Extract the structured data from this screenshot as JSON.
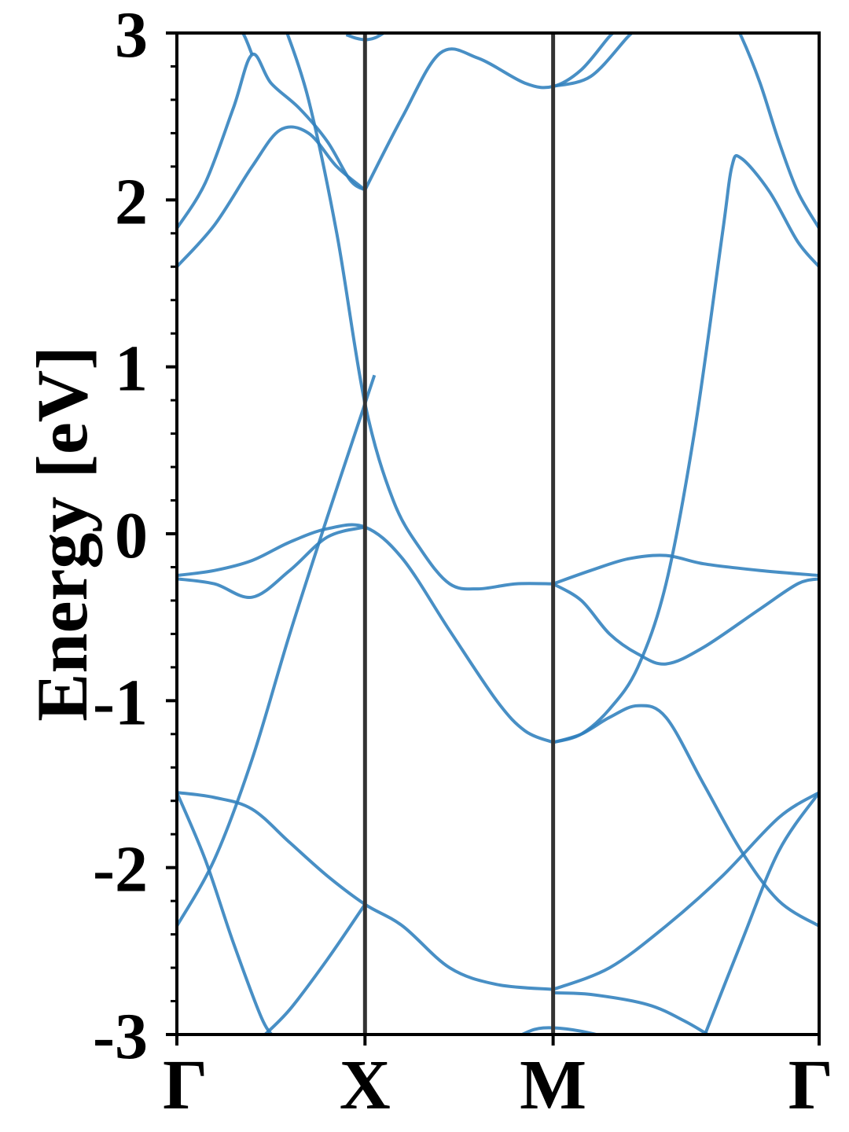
{
  "chart_data": {
    "type": "line",
    "title": "",
    "xlabel": "",
    "ylabel": "Energy [eV]",
    "ylim": [
      -3,
      3
    ],
    "y_ticks": [
      "-3",
      "-2",
      "-1",
      "0",
      "1",
      "2",
      "3"
    ],
    "y_minor_step": 0.2,
    "x_range": [
      0,
      3.414
    ],
    "high_symmetry_points": [
      {
        "label": "Γ",
        "x": 0
      },
      {
        "label": "X",
        "x": 1
      },
      {
        "label": "M",
        "x": 2
      },
      {
        "label": "Γ",
        "x": 3.414
      }
    ],
    "grid": false,
    "legend": "none",
    "colors": {
      "bands": "#2f80bd",
      "kpath_lines": "#333333",
      "axes": "#000000"
    },
    "series": [
      {
        "points": [
          [
            0,
            1.6
          ],
          [
            0.2,
            1.85
          ],
          [
            0.4,
            2.2
          ],
          [
            0.55,
            2.42
          ],
          [
            0.7,
            2.4
          ],
          [
            0.85,
            2.2
          ],
          [
            1.0,
            2.06
          ]
        ]
      },
      {
        "points": [
          [
            0,
            1.83
          ],
          [
            0.15,
            2.1
          ],
          [
            0.3,
            2.55
          ],
          [
            0.4,
            2.87
          ],
          [
            0.5,
            2.7
          ],
          [
            0.65,
            2.55
          ],
          [
            0.8,
            2.35
          ],
          [
            0.92,
            2.12
          ],
          [
            1.0,
            2.06
          ]
        ]
      },
      {
        "points": [
          [
            0.3,
            3.02
          ],
          [
            0.35,
            3.0
          ],
          [
            0.4,
            2.87
          ]
        ]
      },
      {
        "points": [
          [
            1.0,
            2.06
          ],
          [
            1.2,
            2.5
          ],
          [
            1.4,
            2.88
          ],
          [
            1.6,
            2.85
          ],
          [
            1.85,
            2.7
          ],
          [
            2.0,
            2.68
          ],
          [
            2.15,
            2.78
          ],
          [
            2.3,
            2.98
          ],
          [
            2.35,
            3.02
          ]
        ]
      },
      {
        "points": [
          [
            2.0,
            2.68
          ],
          [
            2.2,
            2.74
          ],
          [
            2.4,
            2.98
          ],
          [
            2.45,
            3.02
          ]
        ]
      },
      {
        "points": [
          [
            3.414,
            1.6
          ],
          [
            3.3,
            1.75
          ],
          [
            3.15,
            2.05
          ],
          [
            3.0,
            2.25
          ],
          [
            2.95,
            2.2
          ],
          [
            2.9,
            1.8
          ],
          [
            2.75,
            0.6
          ],
          [
            2.6,
            -0.3
          ],
          [
            2.45,
            -0.8
          ],
          [
            2.3,
            -1.05
          ],
          [
            2.15,
            -1.2
          ],
          [
            2.0,
            -1.25
          ]
        ]
      },
      {
        "points": [
          [
            3.414,
            1.83
          ],
          [
            3.3,
            2.05
          ],
          [
            3.2,
            2.35
          ],
          [
            3.1,
            2.7
          ],
          [
            3.0,
            2.98
          ],
          [
            2.97,
            3.02
          ]
        ]
      },
      {
        "points": [
          [
            0.58,
            3.02
          ],
          [
            0.7,
            2.6
          ],
          [
            0.85,
            1.8
          ],
          [
            1.0,
            0.78
          ],
          [
            1.15,
            0.2
          ],
          [
            1.3,
            -0.1
          ],
          [
            1.45,
            -0.3
          ],
          [
            1.6,
            -0.33
          ],
          [
            1.8,
            -0.3
          ],
          [
            2.0,
            -0.3
          ]
        ]
      },
      {
        "points": [
          [
            0,
            -0.25
          ],
          [
            0.2,
            -0.22
          ],
          [
            0.4,
            -0.16
          ],
          [
            0.6,
            -0.05
          ],
          [
            0.8,
            0.03
          ],
          [
            1.0,
            0.04
          ],
          [
            1.2,
            -0.15
          ],
          [
            1.45,
            -0.58
          ],
          [
            1.7,
            -1.0
          ],
          [
            1.85,
            -1.18
          ],
          [
            2.0,
            -1.25
          ]
        ]
      },
      {
        "points": [
          [
            0,
            -0.27
          ],
          [
            0.2,
            -0.3
          ],
          [
            0.4,
            -0.38
          ],
          [
            0.6,
            -0.22
          ],
          [
            0.8,
            -0.02
          ],
          [
            1.0,
            0.04
          ]
        ]
      },
      {
        "points": [
          [
            0,
            -2.35
          ],
          [
            0.2,
            -1.95
          ],
          [
            0.4,
            -1.35
          ],
          [
            0.6,
            -0.6
          ],
          [
            0.8,
            0.1
          ],
          [
            1.0,
            0.78
          ],
          [
            1.05,
            0.95
          ]
        ]
      },
      {
        "points": [
          [
            2.0,
            -0.3
          ],
          [
            2.2,
            -0.22
          ],
          [
            2.4,
            -0.15
          ],
          [
            2.6,
            -0.13
          ],
          [
            2.8,
            -0.18
          ],
          [
            3.1,
            -0.22
          ],
          [
            3.414,
            -0.25
          ]
        ]
      },
      {
        "points": [
          [
            2.0,
            -0.3
          ],
          [
            2.15,
            -0.4
          ],
          [
            2.3,
            -0.6
          ],
          [
            2.45,
            -0.72
          ],
          [
            2.6,
            -0.78
          ],
          [
            2.8,
            -0.68
          ],
          [
            3.1,
            -0.45
          ],
          [
            3.3,
            -0.3
          ],
          [
            3.414,
            -0.27
          ]
        ]
      },
      {
        "points": [
          [
            2.0,
            -1.25
          ],
          [
            2.15,
            -1.2
          ],
          [
            2.3,
            -1.1
          ],
          [
            2.45,
            -1.03
          ],
          [
            2.6,
            -1.1
          ],
          [
            2.8,
            -1.5
          ],
          [
            3.0,
            -1.9
          ],
          [
            3.2,
            -2.2
          ],
          [
            3.414,
            -2.35
          ]
        ]
      },
      {
        "points": [
          [
            0,
            -1.55
          ],
          [
            0.2,
            -1.58
          ],
          [
            0.4,
            -1.65
          ],
          [
            0.6,
            -1.85
          ],
          [
            0.8,
            -2.05
          ],
          [
            1.0,
            -2.22
          ],
          [
            1.2,
            -2.35
          ],
          [
            1.45,
            -2.6
          ],
          [
            1.7,
            -2.7
          ],
          [
            2.0,
            -2.73
          ]
        ]
      },
      {
        "points": [
          [
            0,
            -1.55
          ],
          [
            0.15,
            -1.95
          ],
          [
            0.3,
            -2.45
          ],
          [
            0.45,
            -2.9
          ],
          [
            0.52,
            -3.02
          ]
        ]
      },
      {
        "points": [
          [
            0.45,
            -3.02
          ],
          [
            0.6,
            -2.85
          ],
          [
            0.8,
            -2.55
          ],
          [
            1.0,
            -2.22
          ]
        ]
      },
      {
        "points": [
          [
            2.0,
            -2.73
          ],
          [
            2.3,
            -2.6
          ],
          [
            2.6,
            -2.35
          ],
          [
            2.9,
            -2.05
          ],
          [
            3.2,
            -1.7
          ],
          [
            3.414,
            -1.55
          ]
        ]
      },
      {
        "points": [
          [
            2.8,
            -3.02
          ],
          [
            3.0,
            -2.45
          ],
          [
            3.2,
            -1.9
          ],
          [
            3.414,
            -1.55
          ]
        ]
      },
      {
        "points": [
          [
            2.0,
            -2.75
          ],
          [
            2.2,
            -2.76
          ],
          [
            2.5,
            -2.82
          ],
          [
            2.7,
            -2.92
          ],
          [
            2.85,
            -3.02
          ]
        ]
      },
      {
        "points": [
          [
            1.8,
            -3.02
          ],
          [
            1.9,
            -2.97
          ],
          [
            2.0,
            -2.96
          ],
          [
            2.15,
            -2.98
          ],
          [
            2.3,
            -3.02
          ]
        ]
      },
      {
        "points": [
          [
            0.9,
            2.99
          ],
          [
            0.95,
            2.97
          ],
          [
            1.0,
            2.96
          ],
          [
            1.05,
            2.97
          ],
          [
            1.1,
            3.0
          ]
        ]
      }
    ]
  }
}
